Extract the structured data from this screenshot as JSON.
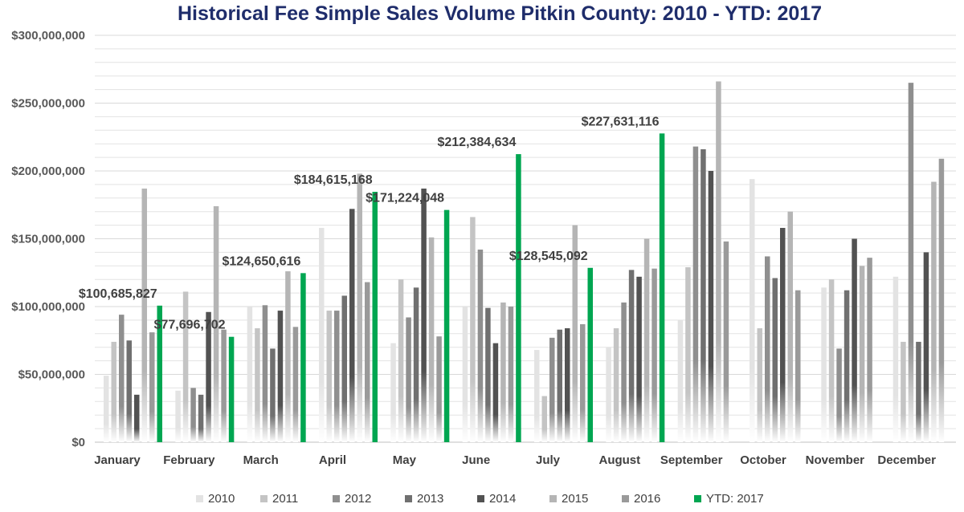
{
  "chart_data": {
    "type": "bar",
    "title": "Historical Fee Simple Sales Volume Pitkin County: 2010 - YTD: 2017",
    "xlabel": "",
    "ylabel": "",
    "ylim": [
      0,
      300000000
    ],
    "yticks": [
      0,
      50000000,
      100000000,
      150000000,
      200000000,
      250000000,
      300000000
    ],
    "ytick_labels": [
      "$0",
      "$50,000,000",
      "$100,000,000",
      "$150,000,000",
      "$200,000,000",
      "$250,000,000",
      "$300,000,000"
    ],
    "categories": [
      "January",
      "February",
      "March",
      "April",
      "May",
      "June",
      "July",
      "August",
      "September",
      "October",
      "November",
      "December"
    ],
    "grid": true,
    "legend_position": "bottom",
    "series": [
      {
        "name": "2010",
        "color": "#e3e3e3",
        "values": [
          49000000,
          38000000,
          100000000,
          158000000,
          73000000,
          100000000,
          68000000,
          70000000,
          90000000,
          194000000,
          114000000,
          122000000
        ]
      },
      {
        "name": "2011",
        "color": "#c4c4c4",
        "values": [
          74000000,
          111000000,
          84000000,
          97000000,
          120000000,
          166000000,
          34000000,
          84000000,
          129000000,
          84000000,
          120000000,
          74000000
        ]
      },
      {
        "name": "2012",
        "color": "#8f8f8f",
        "values": [
          94000000,
          40000000,
          101000000,
          97000000,
          92000000,
          142000000,
          77000000,
          103000000,
          218000000,
          137000000,
          69000000,
          265000000
        ]
      },
      {
        "name": "2013",
        "color": "#707070",
        "values": [
          75000000,
          35000000,
          69000000,
          108000000,
          114000000,
          99000000,
          83000000,
          127000000,
          216000000,
          121000000,
          112000000,
          74000000
        ]
      },
      {
        "name": "2014",
        "color": "#525252",
        "values": [
          35000000,
          96000000,
          97000000,
          172000000,
          187000000,
          73000000,
          84000000,
          122000000,
          200000000,
          158000000,
          150000000,
          140000000
        ]
      },
      {
        "name": "2015",
        "color": "#b5b5b5",
        "values": [
          187000000,
          174000000,
          126000000,
          198000000,
          151000000,
          103000000,
          160000000,
          150000000,
          266000000,
          170000000,
          130000000,
          192000000
        ]
      },
      {
        "name": "2016",
        "color": "#9a9a9a",
        "values": [
          81000000,
          83000000,
          85000000,
          118000000,
          78000000,
          100000000,
          87000000,
          128000000,
          148000000,
          112000000,
          136000000,
          209000000
        ]
      },
      {
        "name": "YTD: 2017",
        "color": "#00a651",
        "values": [
          100685827,
          77696702,
          124650616,
          184615168,
          171224048,
          212384634,
          128545092,
          227631116,
          null,
          null,
          null,
          null
        ]
      }
    ],
    "data_labels": [
      {
        "category": "January",
        "series": "YTD: 2017",
        "text": "$100,685,827"
      },
      {
        "category": "February",
        "series": "YTD: 2017",
        "text": "$77,696,702"
      },
      {
        "category": "March",
        "series": "YTD: 2017",
        "text": "$124,650,616"
      },
      {
        "category": "April",
        "series": "YTD: 2017",
        "text": "$184,615,168"
      },
      {
        "category": "May",
        "series": "YTD: 2017",
        "text": "$171,224,048"
      },
      {
        "category": "June",
        "series": "YTD: 2017",
        "text": "$212,384,634"
      },
      {
        "category": "July",
        "series": "YTD: 2017",
        "text": "$128,545,092"
      },
      {
        "category": "August",
        "series": "YTD: 2017",
        "text": "$227,631,116"
      }
    ]
  }
}
